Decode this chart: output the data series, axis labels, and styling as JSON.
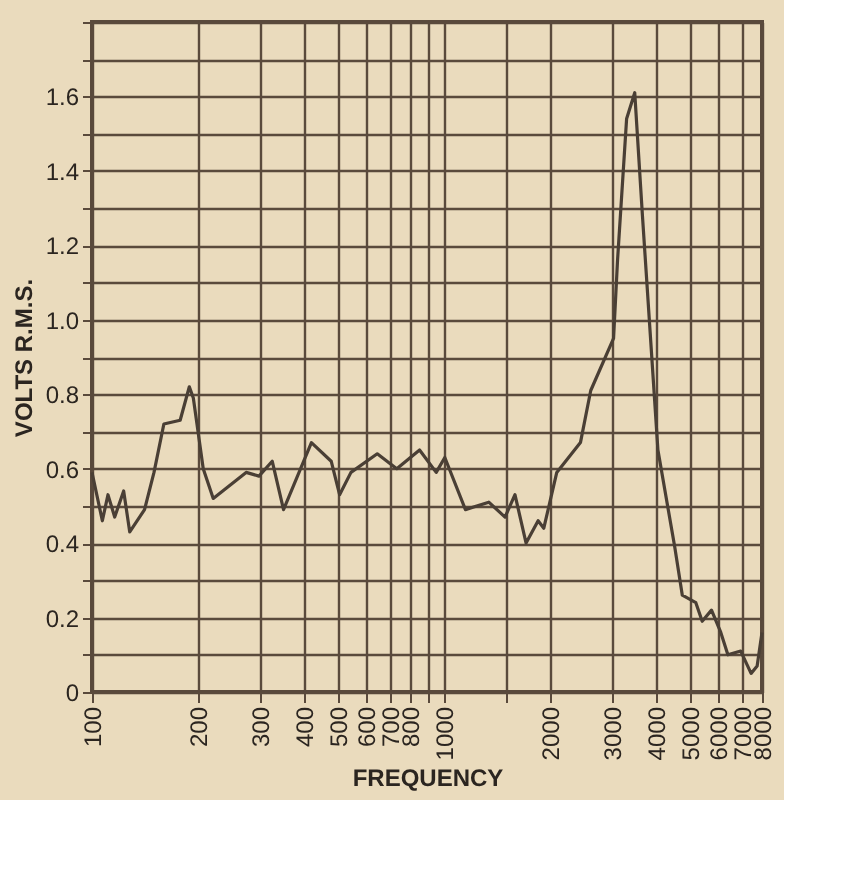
{
  "chart_data": {
    "type": "line",
    "xlabel": "FREQUENCY",
    "ylabel": "VOLTS  R.M.S.",
    "log": "x",
    "grid": true,
    "marker": "none",
    "line_style": "solid",
    "xlim": [
      100,
      8000
    ],
    "ylim": [
      0,
      1.8
    ],
    "xticks": [
      100,
      200,
      300,
      400,
      500,
      600,
      700,
      800,
      {
        "value": 900,
        "label": null
      },
      1000,
      {
        "value": 1500,
        "label": null
      },
      2000,
      3000,
      4000,
      5000,
      6000,
      7000,
      8000
    ],
    "yticks": [
      0,
      {
        "value": 0.1,
        "label": null
      },
      0.2,
      {
        "value": 0.3,
        "label": null
      },
      0.4,
      {
        "value": 0.5,
        "label": null
      },
      0.6,
      {
        "value": 0.7,
        "label": null
      },
      0.8,
      {
        "value": 0.9,
        "label": null
      },
      {
        "value": 1.0,
        "label": "1.0"
      },
      {
        "value": 1.1,
        "label": null
      },
      1.2,
      {
        "value": 1.3,
        "label": null
      },
      1.4,
      {
        "value": 1.5,
        "label": null
      },
      1.6,
      {
        "value": 1.7,
        "label": null
      },
      {
        "value": 1.8,
        "label": null
      }
    ],
    "series": [
      {
        "color": "#4a3f35",
        "x": [
          100,
          107,
          111,
          116,
          123,
          128,
          141,
          150,
          160,
          178,
          189,
          194,
          207,
          221,
          274,
          298,
          325,
          350,
          420,
          478,
          505,
          544,
          646,
          734,
          852,
          950,
          1005,
          1150,
          1340,
          1490,
          1590,
          1710,
          1850,
          1920,
          2090,
          2440,
          2610,
          3030,
          3110,
          3300,
          3480,
          3660,
          4050,
          4520,
          4750,
          5190,
          5410,
          5750,
          6110,
          6400,
          6960,
          7450,
          7750,
          8000
        ],
        "values": [
          0.59,
          0.46,
          0.53,
          0.47,
          0.54,
          0.43,
          0.49,
          0.59,
          0.72,
          0.73,
          0.82,
          0.79,
          0.6,
          0.52,
          0.59,
          0.58,
          0.62,
          0.49,
          0.67,
          0.62,
          0.53,
          0.59,
          0.64,
          0.6,
          0.65,
          0.59,
          0.63,
          0.49,
          0.51,
          0.47,
          0.53,
          0.4,
          0.46,
          0.44,
          0.59,
          0.67,
          0.81,
          0.95,
          1.16,
          1.54,
          1.61,
          1.28,
          0.65,
          0.39,
          0.26,
          0.24,
          0.19,
          0.22,
          0.16,
          0.1,
          0.11,
          0.05,
          0.07,
          0.16
        ]
      }
    ]
  }
}
